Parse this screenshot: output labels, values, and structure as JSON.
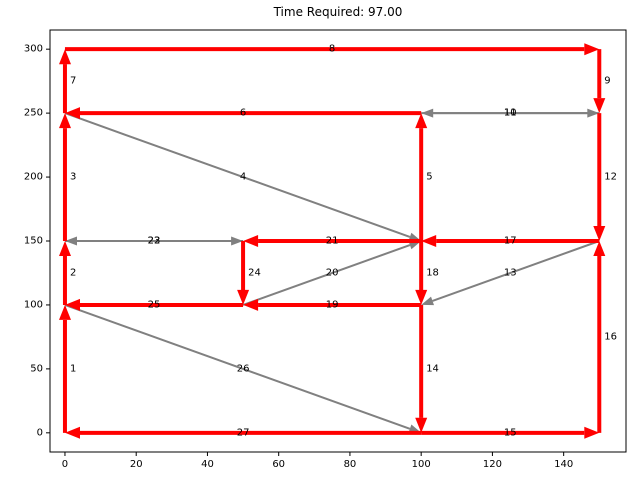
{
  "chart_data": {
    "type": "network",
    "title": "Time Required: 97.00",
    "xlabel": "",
    "ylabel": "",
    "xlim": [
      -4.2,
      157.5
    ],
    "ylim": [
      -15,
      315
    ],
    "x_ticks": [
      0,
      20,
      40,
      60,
      80,
      100,
      120,
      140
    ],
    "y_ticks": [
      0,
      50,
      100,
      150,
      200,
      250,
      300
    ],
    "grid": false,
    "colors": {
      "selected": "#ff0000",
      "unselected": "#808080"
    },
    "edges": [
      {
        "label": "1",
        "from": [
          0,
          0
        ],
        "to": [
          0,
          100
        ],
        "selected": true
      },
      {
        "label": "2",
        "from": [
          0,
          100
        ],
        "to": [
          0,
          150
        ],
        "selected": true
      },
      {
        "label": "3",
        "from": [
          0,
          150
        ],
        "to": [
          0,
          250
        ],
        "selected": true
      },
      {
        "label": "4",
        "from": [
          0,
          250
        ],
        "to": [
          100,
          150
        ],
        "selected": false
      },
      {
        "label": "5",
        "from": [
          100,
          150
        ],
        "to": [
          100,
          250
        ],
        "selected": true
      },
      {
        "label": "6",
        "from": [
          100,
          250
        ],
        "to": [
          0,
          250
        ],
        "selected": true
      },
      {
        "label": "7",
        "from": [
          0,
          250
        ],
        "to": [
          0,
          300
        ],
        "selected": true
      },
      {
        "label": "8",
        "from": [
          0,
          300
        ],
        "to": [
          150,
          300
        ],
        "selected": true
      },
      {
        "label": "9",
        "from": [
          150,
          300
        ],
        "to": [
          150,
          250
        ],
        "selected": true
      },
      {
        "label": "10",
        "from": [
          150,
          250
        ],
        "to": [
          100,
          250
        ],
        "selected": false
      },
      {
        "label": "11",
        "from": [
          100,
          250
        ],
        "to": [
          150,
          250
        ],
        "selected": false
      },
      {
        "label": "12",
        "from": [
          150,
          250
        ],
        "to": [
          150,
          150
        ],
        "selected": true
      },
      {
        "label": "13",
        "from": [
          150,
          150
        ],
        "to": [
          100,
          100
        ],
        "selected": false
      },
      {
        "label": "14",
        "from": [
          100,
          100
        ],
        "to": [
          100,
          0
        ],
        "selected": true
      },
      {
        "label": "15",
        "from": [
          100,
          0
        ],
        "to": [
          150,
          0
        ],
        "selected": true
      },
      {
        "label": "16",
        "from": [
          150,
          0
        ],
        "to": [
          150,
          150
        ],
        "selected": true
      },
      {
        "label": "17",
        "from": [
          150,
          150
        ],
        "to": [
          100,
          150
        ],
        "selected": true
      },
      {
        "label": "18",
        "from": [
          100,
          150
        ],
        "to": [
          100,
          100
        ],
        "selected": true
      },
      {
        "label": "19",
        "from": [
          100,
          100
        ],
        "to": [
          50,
          100
        ],
        "selected": true
      },
      {
        "label": "20",
        "from": [
          50,
          100
        ],
        "to": [
          100,
          150
        ],
        "selected": false
      },
      {
        "label": "21",
        "from": [
          100,
          150
        ],
        "to": [
          50,
          150
        ],
        "selected": true
      },
      {
        "label": "22",
        "from": [
          50,
          150
        ],
        "to": [
          0,
          150
        ],
        "selected": false
      },
      {
        "label": "23",
        "from": [
          0,
          150
        ],
        "to": [
          50,
          150
        ],
        "selected": false
      },
      {
        "label": "24",
        "from": [
          50,
          150
        ],
        "to": [
          50,
          100
        ],
        "selected": true
      },
      {
        "label": "25",
        "from": [
          50,
          100
        ],
        "to": [
          0,
          100
        ],
        "selected": true
      },
      {
        "label": "26",
        "from": [
          0,
          100
        ],
        "to": [
          100,
          0
        ],
        "selected": false
      },
      {
        "label": "27",
        "from": [
          100,
          0
        ],
        "to": [
          0,
          0
        ],
        "selected": true
      }
    ]
  }
}
